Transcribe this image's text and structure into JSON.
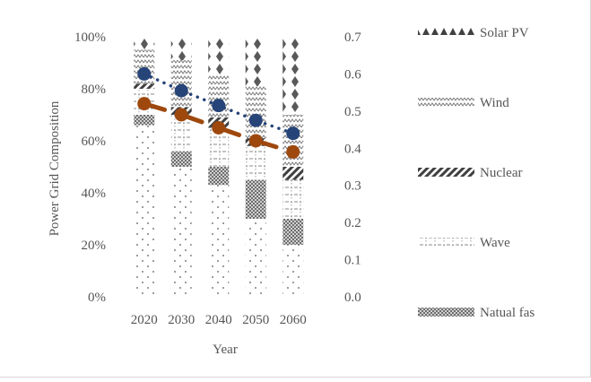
{
  "chart_data": {
    "type": "bar",
    "stacked": true,
    "percent_stacked": true,
    "categories": [
      "2020",
      "2030",
      "2040",
      "2050",
      "2060"
    ],
    "xlabel": "Year",
    "ylabel": "Power Grid Composition",
    "y_ticks": [
      "0%",
      "20%",
      "40%",
      "60%",
      "80%",
      "100%"
    ],
    "ylim": [
      0,
      1
    ],
    "y2_ticks": [
      "0.0",
      "0.1",
      "0.2",
      "0.3",
      "0.4",
      "0.5",
      "0.6",
      "0.7"
    ],
    "y2lim": [
      0,
      0.7
    ],
    "legend_position": "right",
    "grid": false,
    "series": [
      {
        "name": "",
        "pattern": "dots",
        "values": [
          0.66,
          0.5,
          0.43,
          0.3,
          0.2
        ]
      },
      {
        "name": "Natual fas",
        "pattern": "checker",
        "values": [
          0.04,
          0.06,
          0.07,
          0.15,
          0.1
        ]
      },
      {
        "name": "Wave",
        "pattern": "wave-pattern",
        "values": [
          0.1,
          0.14,
          0.15,
          0.13,
          0.15
        ]
      },
      {
        "name": "Nuclear",
        "pattern": "diagonal",
        "values": [
          0.02,
          0.03,
          0.04,
          0.03,
          0.05
        ]
      },
      {
        "name": "Wind",
        "pattern": "zigzag",
        "values": [
          0.13,
          0.18,
          0.16,
          0.2,
          0.2
        ]
      },
      {
        "name": "Solar PV",
        "pattern": "diamonds",
        "values": [
          0.05,
          0.09,
          0.15,
          0.19,
          0.3
        ]
      }
    ],
    "lines": [
      {
        "name": "",
        "axis": "secondary",
        "style": "dotted",
        "color": "#264478",
        "values": [
          0.6,
          0.555,
          0.515,
          0.475,
          0.44
        ]
      },
      {
        "name": "",
        "axis": "secondary",
        "style": "dashed",
        "color": "#9E480E",
        "values": [
          0.52,
          0.49,
          0.455,
          0.42,
          0.39
        ]
      }
    ],
    "legend": [
      "Solar PV",
      "Wind",
      "Nuclear",
      "Wave",
      "Natual fas"
    ]
  }
}
